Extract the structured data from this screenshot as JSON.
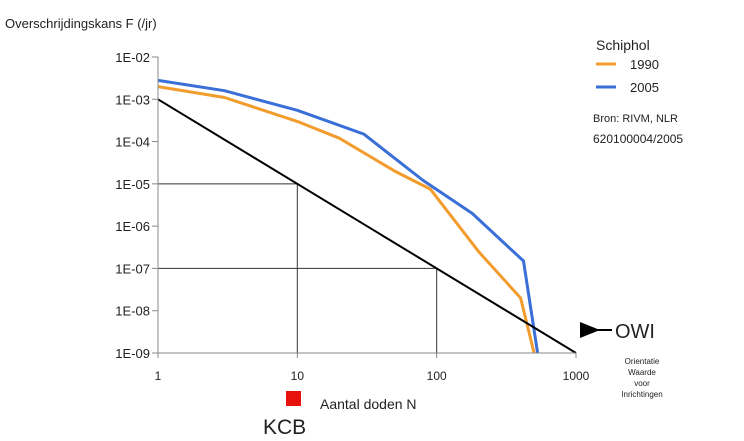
{
  "chart_data": {
    "type": "line",
    "ylabel": "Overschrijdingskans F (/jr)",
    "xlabel": "Aantal doden N",
    "x_scale": "log",
    "y_scale": "log",
    "xlim": [
      1,
      1000
    ],
    "ylim": [
      1e-09,
      0.01
    ],
    "x_ticks": [
      "1",
      "10",
      "100",
      "1000"
    ],
    "y_ticks": [
      "1E-09",
      "1E-08",
      "1E-07",
      "1E-06",
      "1E-05",
      "1E-04",
      "1E-03",
      "1E-02"
    ],
    "legend": {
      "title": "Schiphol",
      "position": "top-right",
      "entries": [
        "1990",
        "2005"
      ]
    },
    "series": [
      {
        "name": "1990",
        "color": "#f39c2e",
        "points": [
          [
            1,
            0.002
          ],
          [
            3,
            0.0011
          ],
          [
            10,
            0.0003
          ],
          [
            20,
            0.00012
          ],
          [
            50,
            2e-05
          ],
          [
            90,
            7.5e-06
          ],
          [
            200,
            2.5e-07
          ],
          [
            400,
            2e-08
          ],
          [
            500,
            1e-09
          ]
        ]
      },
      {
        "name": "2005",
        "color": "#3a6fd8",
        "points": [
          [
            1,
            0.0028
          ],
          [
            3,
            0.0016
          ],
          [
            10,
            0.00055
          ],
          [
            30,
            0.00015
          ],
          [
            80,
            1.2e-05
          ],
          [
            180,
            2e-06
          ],
          [
            420,
            1.5e-07
          ],
          [
            530,
            1e-09
          ]
        ]
      },
      {
        "name": "OWI",
        "color": "#000000",
        "points": [
          [
            1,
            0.001
          ],
          [
            1000,
            1e-09
          ]
        ]
      }
    ],
    "reference_lines": [
      {
        "points": [
          [
            1,
            1e-05
          ],
          [
            10,
            1e-05
          ],
          [
            10,
            1e-09
          ]
        ]
      },
      {
        "points": [
          [
            1,
            1e-07
          ],
          [
            100,
            1e-07
          ],
          [
            100,
            1e-09
          ]
        ]
      }
    ],
    "annotations": {
      "source_line1": "Bron: RIVM, NLR",
      "source_line2": "620100004/2005",
      "owi_label": "OWI",
      "owi_point": [
        600,
        3e-09
      ],
      "owi_description": [
        "Orientatie",
        "Waarde",
        "voor",
        "Inrichtingen"
      ],
      "kcb_label": "KCB",
      "kcb_marker_color": "#e8120c"
    }
  }
}
